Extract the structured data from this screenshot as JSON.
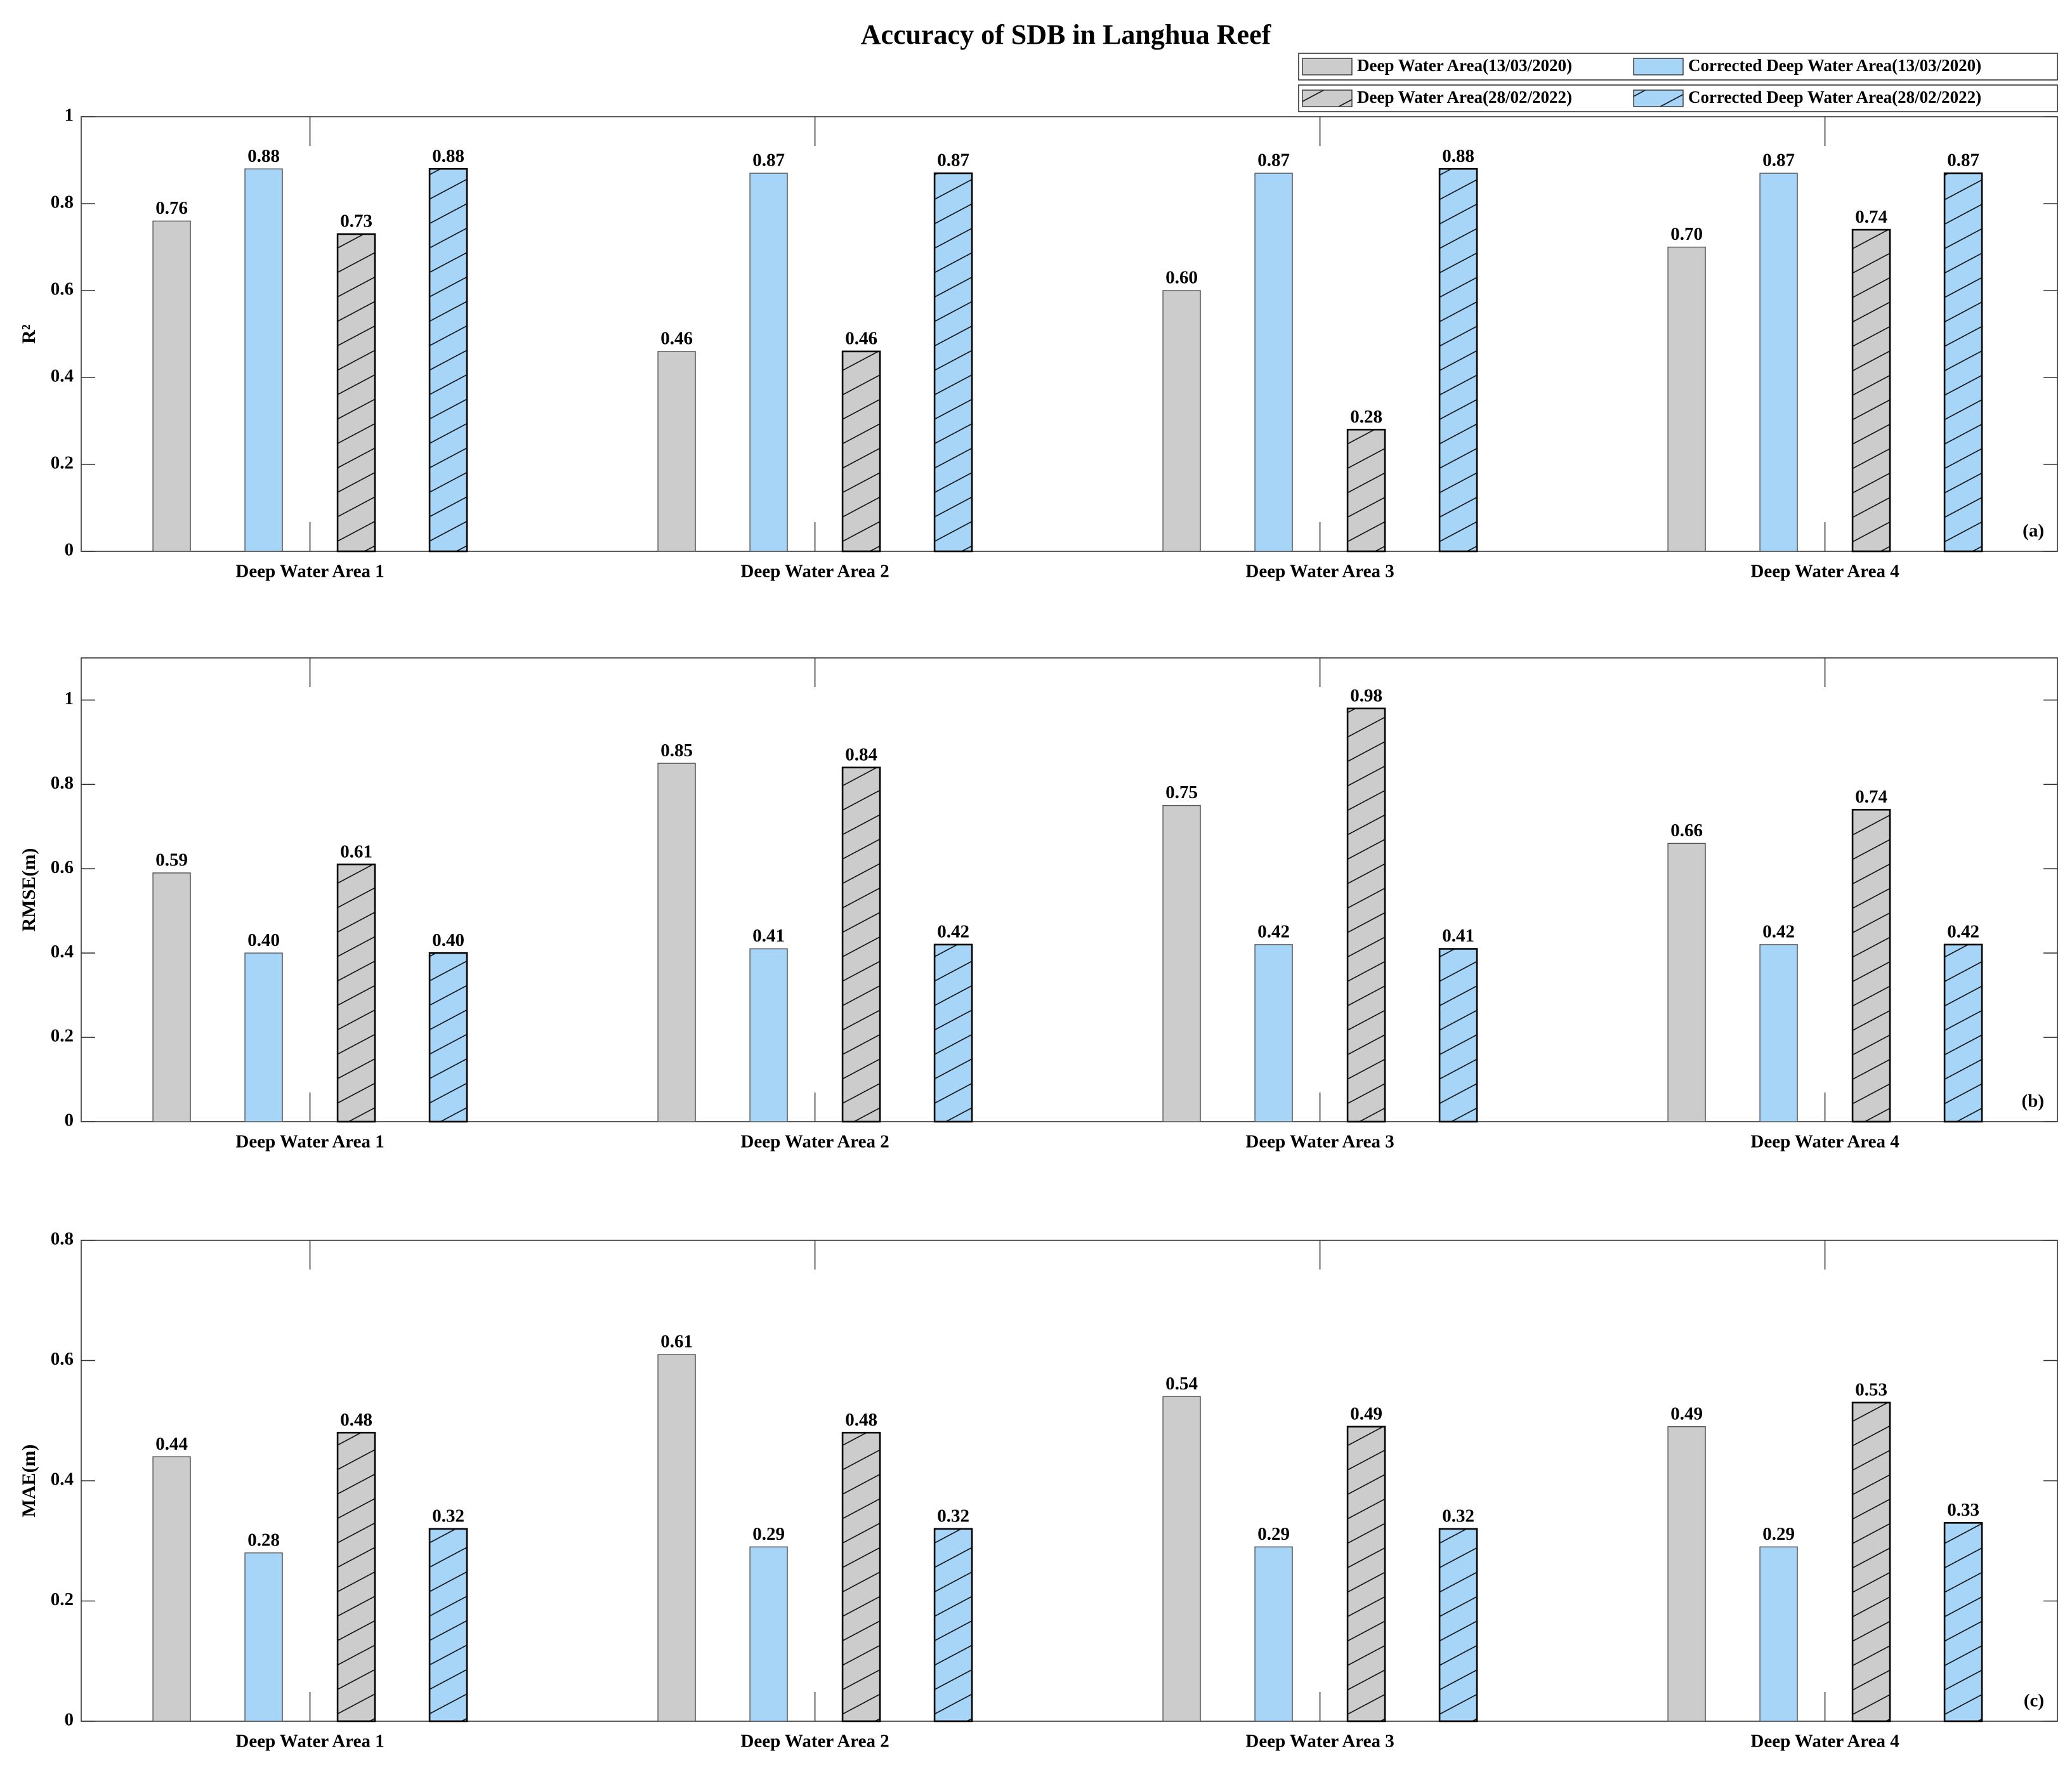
{
  "chart_data": [
    {
      "type": "bar",
      "title": "Accuracy of SDB in Langhua Reef",
      "ylabel": "R²",
      "annotation": "(a)",
      "legend": "upper right",
      "categories": [
        "Deep Water Area 1",
        "Deep Water Area 2",
        "Deep Water Area 3",
        "Deep Water Area 4"
      ],
      "series": [
        {
          "name": "Deep Water Area(13/03/2020)",
          "color": "#cccccc",
          "hatch": false,
          "values": [
            0.76,
            0.46,
            0.6,
            0.7
          ],
          "value_labels": [
            "0.76",
            "0.46",
            "0.60",
            "0.70"
          ]
        },
        {
          "name": "Corrected Deep Water Area(13/03/2020)",
          "color": "#a6d5f7",
          "hatch": false,
          "values": [
            0.88,
            0.87,
            0.87,
            0.87
          ],
          "value_labels": [
            "0.88",
            "0.87",
            "0.87",
            "0.87"
          ]
        },
        {
          "name": "Deep Water Area(28/02/2022)",
          "color": "#cccccc",
          "hatch": true,
          "values": [
            0.73,
            0.46,
            0.28,
            0.74
          ],
          "value_labels": [
            "0.73",
            "0.46",
            "0.28",
            "0.74"
          ]
        },
        {
          "name": "Corrected Deep Water Area(28/02/2022)",
          "color": "#a6d5f7",
          "hatch": true,
          "values": [
            0.88,
            0.87,
            0.88,
            0.87
          ],
          "value_labels": [
            "0.88",
            "0.87",
            "0.88",
            "0.87"
          ]
        }
      ],
      "ylim": [
        0,
        1
      ],
      "yticks": [
        0,
        0.2,
        0.4,
        0.6,
        0.8,
        1
      ]
    },
    {
      "type": "bar",
      "ylabel": "RMSE(m)",
      "annotation": "(b)",
      "categories": [
        "Deep Water Area 1",
        "Deep Water Area 2",
        "Deep Water Area 3",
        "Deep Water Area 4"
      ],
      "series": [
        {
          "color": "#cccccc",
          "hatch": false,
          "values": [
            0.59,
            0.85,
            0.75,
            0.66
          ],
          "value_labels": [
            "0.59",
            "0.85",
            "0.75",
            "0.66"
          ]
        },
        {
          "color": "#a6d5f7",
          "hatch": false,
          "values": [
            0.4,
            0.41,
            0.42,
            0.42
          ],
          "value_labels": [
            "0.40",
            "0.41",
            "0.42",
            "0.42"
          ]
        },
        {
          "color": "#cccccc",
          "hatch": true,
          "values": [
            0.61,
            0.84,
            0.98,
            0.74
          ],
          "value_labels": [
            "0.61",
            "0.84",
            "0.98",
            "0.74"
          ]
        },
        {
          "color": "#a6d5f7",
          "hatch": true,
          "values": [
            0.4,
            0.42,
            0.41,
            0.42
          ],
          "value_labels": [
            "0.40",
            "0.42",
            "0.41",
            "0.42"
          ]
        }
      ],
      "ylim": [
        0,
        1.1
      ],
      "yticks": [
        0,
        0.2,
        0.4,
        0.6,
        0.8,
        1
      ]
    },
    {
      "type": "bar",
      "ylabel": "MAE(m)",
      "annotation": "(c)",
      "categories": [
        "Deep Water Area 1",
        "Deep Water Area 2",
        "Deep Water Area 3",
        "Deep Water Area 4"
      ],
      "series": [
        {
          "color": "#cccccc",
          "hatch": false,
          "values": [
            0.44,
            0.61,
            0.54,
            0.49
          ],
          "value_labels": [
            "0.44",
            "0.61",
            "0.54",
            "0.49"
          ]
        },
        {
          "color": "#a6d5f7",
          "hatch": false,
          "values": [
            0.28,
            0.29,
            0.29,
            0.29
          ],
          "value_labels": [
            "0.28",
            "0.29",
            "0.29",
            "0.29"
          ]
        },
        {
          "color": "#cccccc",
          "hatch": true,
          "values": [
            0.48,
            0.48,
            0.49,
            0.53
          ],
          "value_labels": [
            "0.48",
            "0.48",
            "0.49",
            "0.53"
          ]
        },
        {
          "color": "#a6d5f7",
          "hatch": true,
          "values": [
            0.32,
            0.32,
            0.32,
            0.33
          ],
          "value_labels": [
            "0.32",
            "0.32",
            "0.32",
            "0.33"
          ]
        }
      ],
      "ylim": [
        0,
        0.8
      ],
      "yticks": [
        0,
        0.2,
        0.4,
        0.6,
        0.8
      ]
    }
  ]
}
